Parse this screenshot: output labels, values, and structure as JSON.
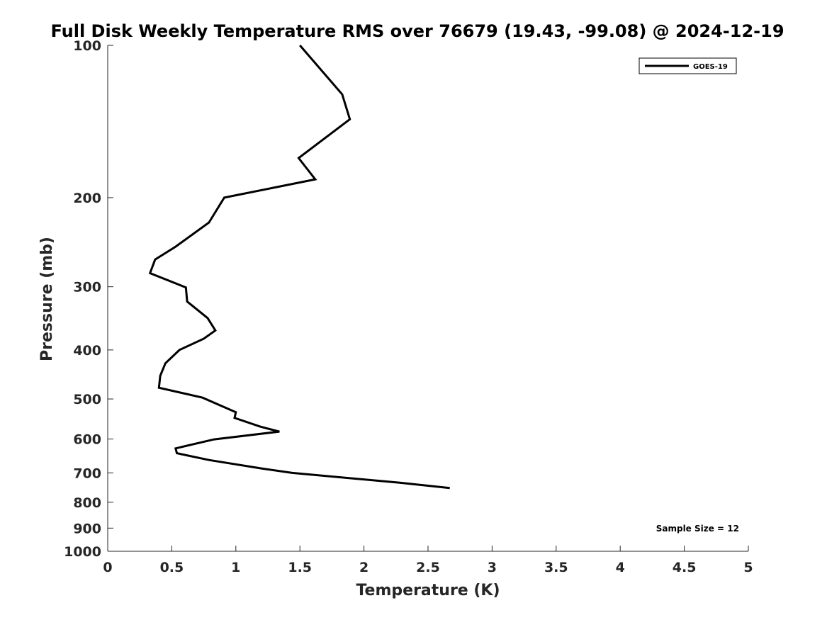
{
  "chart_data": {
    "type": "line",
    "title": "Full Disk Weekly Temperature RMS over 76679 (19.43, -99.08) @ 2024-12-19",
    "xlabel": "Temperature (K)",
    "ylabel": "Pressure (mb)",
    "xlim": [
      0,
      5
    ],
    "ylim": [
      100,
      1000
    ],
    "y_scale": "log",
    "y_reversed": true,
    "x_ticks": [
      "0",
      "0.5",
      "1",
      "1.5",
      "2",
      "2.5",
      "3",
      "3.5",
      "4",
      "4.5",
      "5"
    ],
    "y_ticks": [
      "100",
      "200",
      "300",
      "400",
      "500",
      "600",
      "700",
      "800",
      "900",
      "1000"
    ],
    "grid": false,
    "legend_position": "top-right",
    "annotation": "Sample Size = 12",
    "series": [
      {
        "name": "GOES-19",
        "color": "#000000",
        "x": [
          1.5,
          1.83,
          1.89,
          1.49,
          1.62,
          0.91,
          0.79,
          0.53,
          0.37,
          0.33,
          0.61,
          0.62,
          0.78,
          0.84,
          0.75,
          0.56,
          0.45,
          0.41,
          0.4,
          0.74,
          1.0,
          0.99,
          1.19,
          1.34,
          0.83,
          0.53,
          0.54,
          0.79,
          1.2,
          1.44,
          2.28,
          2.67
        ],
        "y": [
          100,
          125,
          140,
          167,
          184,
          200,
          224,
          250,
          265,
          282,
          301,
          321,
          346,
          366,
          380,
          400,
          425,
          450,
          475,
          497,
          531,
          545,
          567,
          580,
          601,
          626,
          640,
          660,
          686,
          700,
          732,
          750
        ]
      }
    ]
  }
}
